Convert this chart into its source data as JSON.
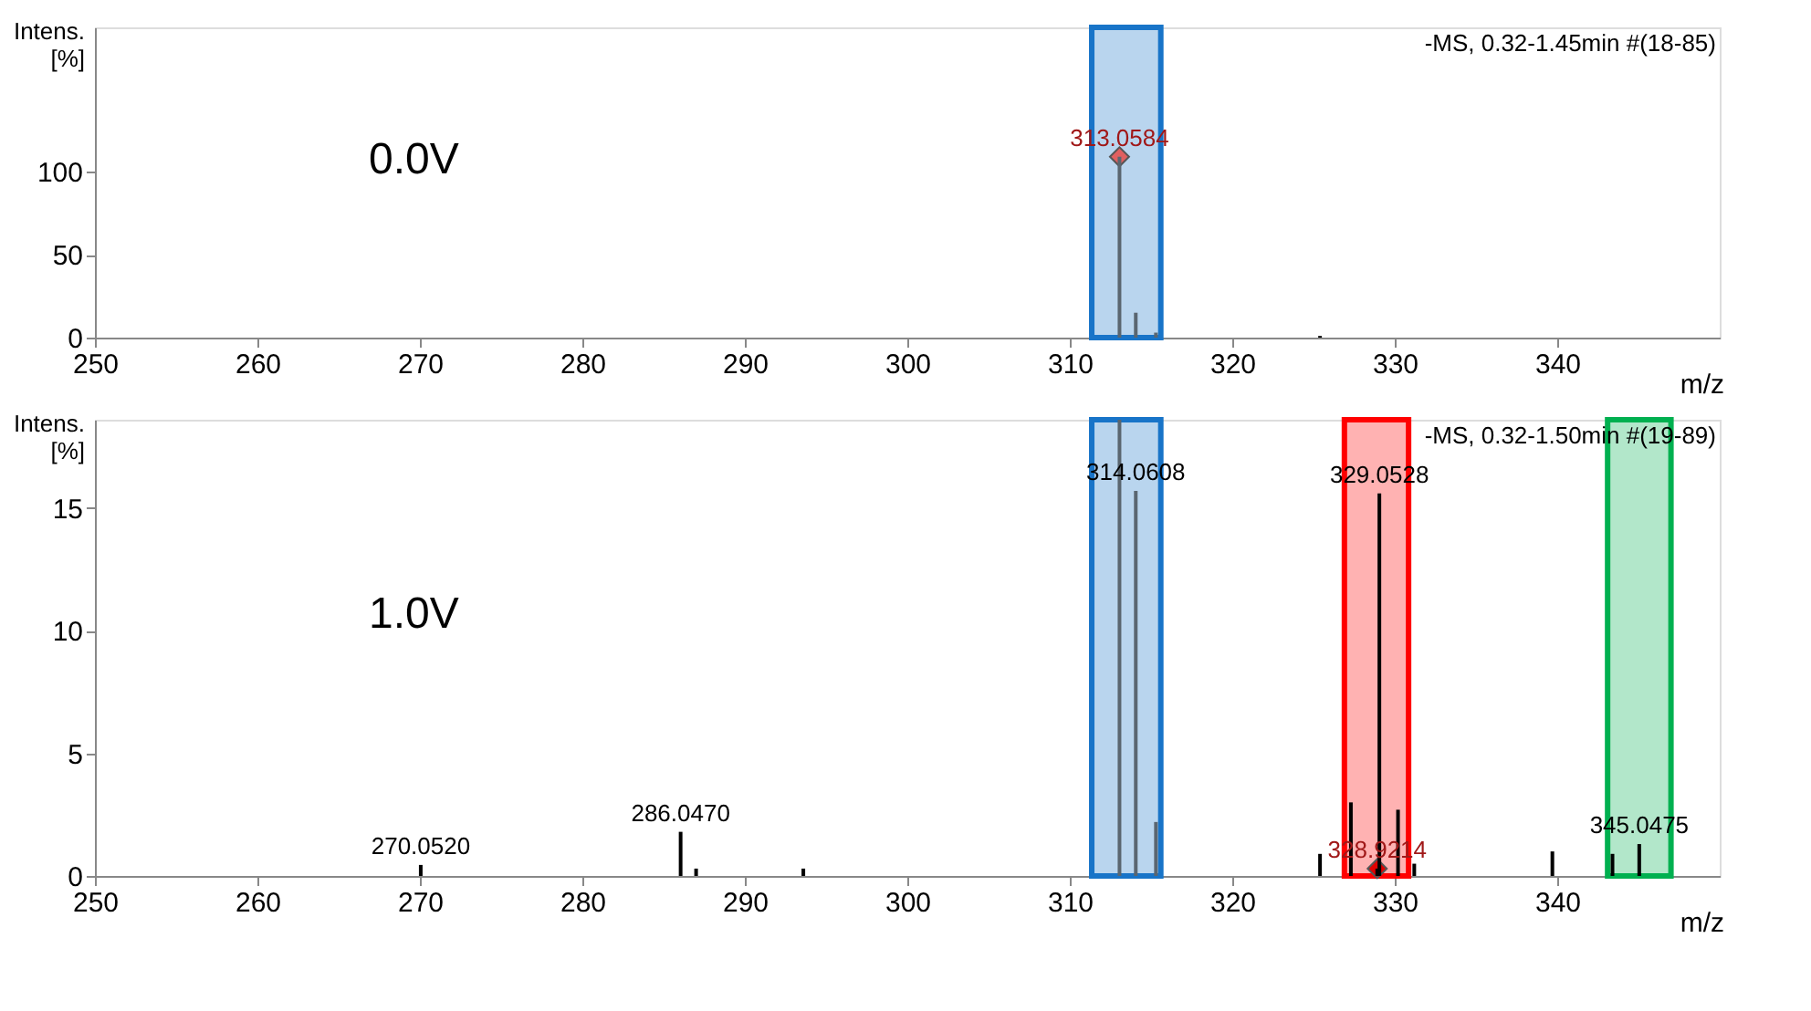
{
  "chart_data": [
    {
      "type": "bar",
      "xlabel": "m/z",
      "ylabel": "Intens. [%]",
      "xlim": [
        250,
        350
      ],
      "ylim": [
        0,
        187
      ],
      "xticks": [
        250,
        260,
        270,
        280,
        290,
        300,
        310,
        320,
        330,
        340
      ],
      "yticks": [
        0,
        50,
        100
      ],
      "series": [
        {
          "x": [
            313.0584,
            314.06,
            315.3,
            325.4
          ],
          "values": [
            109,
            15,
            3,
            1
          ],
          "colors": [
            "#5a6670",
            "#5a6670",
            "#5a6670",
            "#000000"
          ]
        },
        {
          "type": "scatter",
          "marker": "diamond",
          "x": [
            313.0584
          ],
          "values": [
            109
          ],
          "color": "#e06060"
        }
      ],
      "bands": [
        {
          "axis": "x",
          "from": 311.35,
          "to": 315.6,
          "color": "#1874c8"
        }
      ],
      "annotations": [
        "-MS, 0.32-1.45min #(18-85)",
        "0.0V",
        {
          "text": "313.0584",
          "x": 313.0584,
          "y": 109
        }
      ]
    },
    {
      "type": "bar",
      "xlabel": "m/z",
      "ylabel": "Intens. [%]",
      "xlim": [
        250,
        350
      ],
      "ylim": [
        0,
        18.6
      ],
      "xticks": [
        250,
        260,
        270,
        280,
        290,
        300,
        310,
        320,
        330,
        340
      ],
      "yticks": [
        0,
        5,
        10,
        15
      ],
      "series": [
        {
          "x": [
            270.052,
            286.047,
            287.0,
            293.6,
            313.0584,
            314.0608,
            315.3,
            325.4,
            327.3,
            328.9214,
            329.0528,
            330.2,
            331.2,
            339.7,
            343.4,
            345.0475
          ],
          "values": [
            0.45,
            1.8,
            0.3,
            0.3,
            18.6,
            15.7,
            2.2,
            0.9,
            3.0,
            0.3,
            15.6,
            2.7,
            0.5,
            1.0,
            0.9,
            1.3
          ],
          "colors": [
            "#000000",
            "#000000",
            "#000000",
            "#000000",
            "#5a6670",
            "#5a6670",
            "#5a6670",
            "#000000",
            "#000000",
            "#000000",
            "#000000",
            "#000000",
            "#000000",
            "#000000",
            "#000000",
            "#000000"
          ]
        },
        {
          "type": "scatter",
          "marker": "diamond",
          "x": [
            328.9214
          ],
          "values": [
            0.3
          ],
          "color": "#e00000"
        }
      ],
      "bands": [
        {
          "axis": "x",
          "from": 311.35,
          "to": 315.6,
          "color": "#1874c8"
        },
        {
          "axis": "x",
          "from": 326.9,
          "to": 330.85,
          "color": "#ff0000"
        },
        {
          "axis": "x",
          "from": 343.1,
          "to": 347.0,
          "color": "#00b050"
        }
      ],
      "annotations": [
        "-MS, 0.32-1.50min #(19-89)",
        "1.0V",
        {
          "text": "270.0520",
          "x": 270.052,
          "y": 0.45
        },
        {
          "text": "286.0470",
          "x": 286.047,
          "y": 1.8
        },
        {
          "text": "314.0608",
          "x": 314.0608,
          "y": 15.7
        },
        {
          "text": "328.9214",
          "x": 328.9214,
          "y": 0.3
        },
        {
          "text": "329.0528",
          "x": 329.0528,
          "y": 15.6
        },
        {
          "text": "345.0475",
          "x": 345.0475,
          "y": 1.3
        }
      ]
    }
  ]
}
